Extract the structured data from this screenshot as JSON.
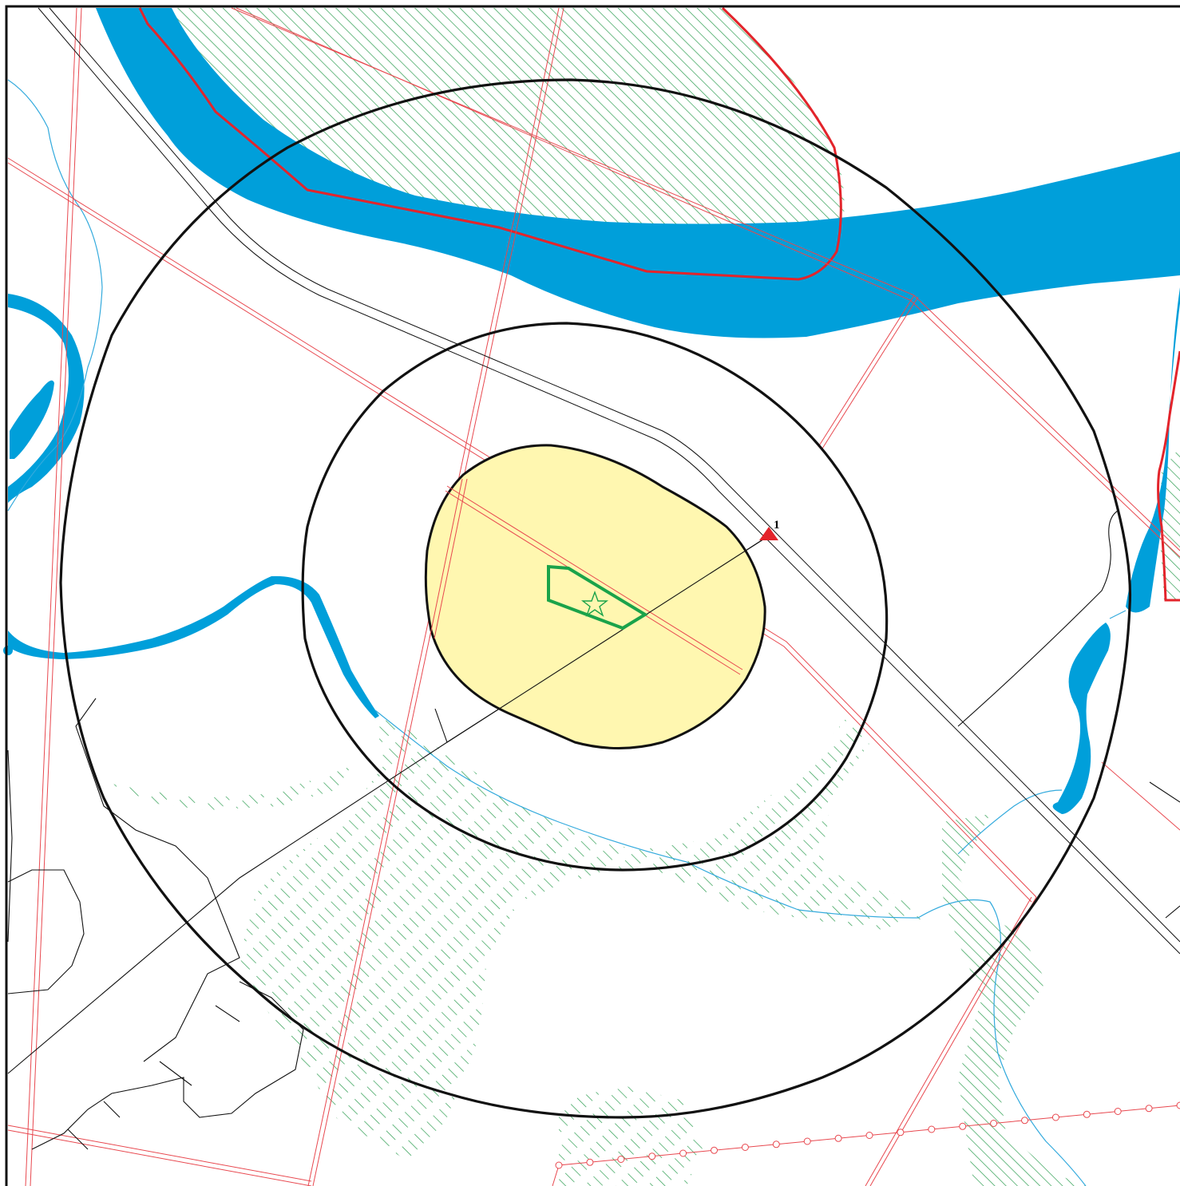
{
  "map": {
    "point_marker_label": "1",
    "colors": {
      "water": "#009fda",
      "stream": "#33aadd",
      "boundary_red": "#e3242b",
      "pipeline_red": "#e8484f",
      "hatch_green": "#2e9e52",
      "zone_fill": "#fff7b0",
      "object_green": "#1aa34a",
      "line_black": "#111111",
      "background": "#ffffff"
    },
    "icons": [
      "triangle-marker-icon",
      "star-icon"
    ]
  }
}
